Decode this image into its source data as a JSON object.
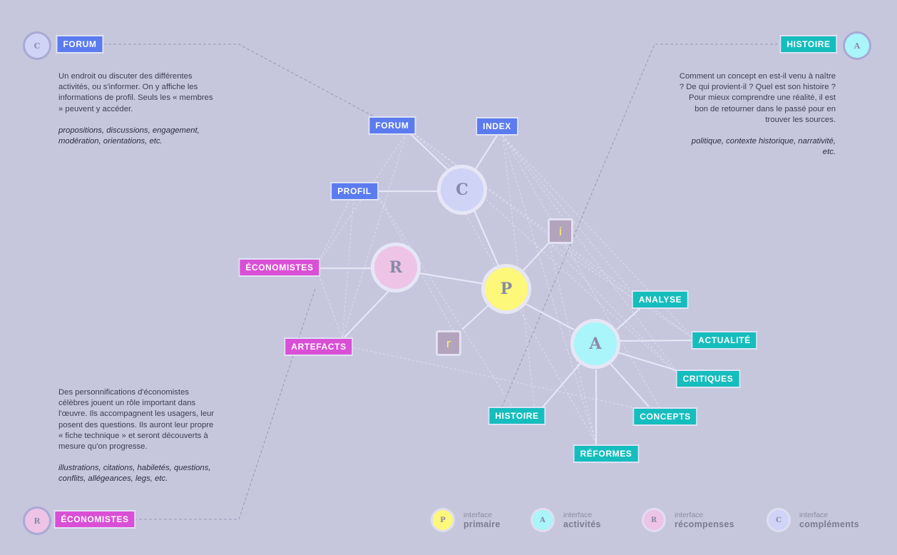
{
  "sections": {
    "forum": {
      "badge": "C",
      "title": "FORUM",
      "text": "Un endroit ou discuter des différentes activités, ou s'informer. On y affiche les informations de profil. Seuls les « membres » peuvent y accéder.",
      "keywords": "propositions, discussions, engagement, modération, orientations, etc."
    },
    "histoire": {
      "badge": "A",
      "title": "HISTOIRE",
      "text": "Comment un concept en est-il venu à naître ? De qui provient-il ? Quel est son histoire ? Pour mieux comprendre une réalité, il est bon de retourner dans le passé pour en trouver les sources.",
      "keywords": "politique, contexte historique, narrativité, etc."
    },
    "economistes": {
      "badge": "R",
      "title": "ÉCONOMISTES",
      "text": "Des personnifications d'économistes célèbres jouent un rôle important dans l'œuvre. Ils accompagnent les usagers, leur posent des questions. Ils auront leur propre « fiche technique » et seront découverts à mesure qu'on progresse.",
      "keywords": "illustrations, citations, habiletés, questions, conflits, allégeances, legs, etc."
    }
  },
  "diagram": {
    "hubs": {
      "c": "C",
      "r": "R",
      "p": "P",
      "a": "A"
    },
    "squares": {
      "i": "i",
      "r": "r"
    },
    "tags": {
      "forum": "FORUM",
      "index": "INDEX",
      "profil": "PROFIL",
      "economistes": "ÉCONOMISTES",
      "artefacts": "ARTEFACTS",
      "analyse": "ANALYSE",
      "actualite": "ACTUALITÉ",
      "critiques": "CRITIQUES",
      "concepts": "CONCEPTS",
      "reformes": "RÉFORMES",
      "histoire": "HISTOIRE"
    }
  },
  "legend": [
    {
      "badge": "P",
      "small": "interface",
      "big": "primaire"
    },
    {
      "badge": "A",
      "small": "interface",
      "big": "activités"
    },
    {
      "badge": "R",
      "small": "interface",
      "big": "récompenses"
    },
    {
      "badge": "C",
      "small": "interface",
      "big": "compléments"
    }
  ],
  "colors": {
    "background": "#c6c6dd",
    "blue": "#5b7bef",
    "teal": "#16bdbd",
    "pink": "#d94fd6",
    "primaire": "#fdf77a",
    "activites": "#a9f5f9",
    "recompenses": "#edc4e6",
    "complements": "#cfd3f5"
  }
}
